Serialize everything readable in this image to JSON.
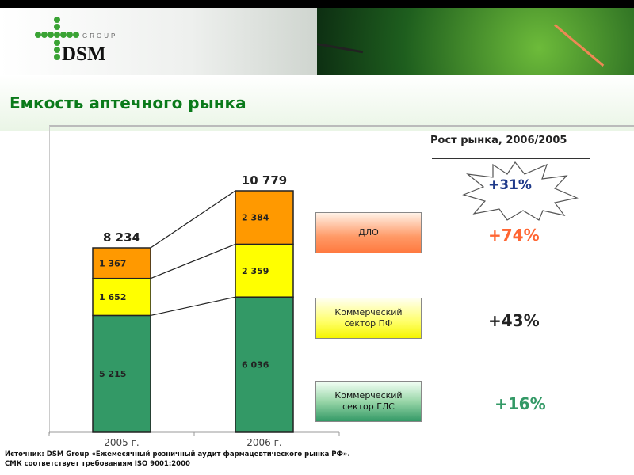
{
  "logo": {
    "text": "DSM",
    "subtext": "GROUP"
  },
  "title": "Емкость аптечного рынка",
  "chart_data": {
    "type": "bar",
    "stacked": true,
    "categories": [
      "2005 г.",
      "2006 г."
    ],
    "series": [
      {
        "name": "Коммерческий сектор ГЛС",
        "values": [
          5215,
          6036
        ],
        "color": "#339966",
        "labels": [
          "5 215",
          "6 036"
        ]
      },
      {
        "name": "Коммерческий сектор ПФ",
        "values": [
          1652,
          2359
        ],
        "color": "#ffff00",
        "labels": [
          "1 652",
          "2 359"
        ]
      },
      {
        "name": "ДЛО",
        "values": [
          1367,
          2384
        ],
        "color": "#ff9900",
        "labels": [
          "1 367",
          "2 384"
        ]
      }
    ],
    "totals": [
      8234,
      10779
    ],
    "total_labels": [
      "8 234",
      "10 779"
    ],
    "ylim": [
      0,
      11000
    ]
  },
  "growth": {
    "title": "Рост рынка, 2006/2005",
    "total": "+31%",
    "items": [
      {
        "label": "ДЛО",
        "value": "+74%",
        "color": "#ff6633"
      },
      {
        "label": "Коммерческий сектор ПФ",
        "value": "+43%",
        "color": "#222222"
      },
      {
        "label": "Коммерческий сектор ГЛС",
        "value": "+16%",
        "color": "#339966"
      }
    ]
  },
  "source": [
    "Источник: DSM Group «Ежемесячный розничный аудит фармацевтического рынка РФ».",
    "СМК соответствует требованиям ISO 9001:2000"
  ]
}
